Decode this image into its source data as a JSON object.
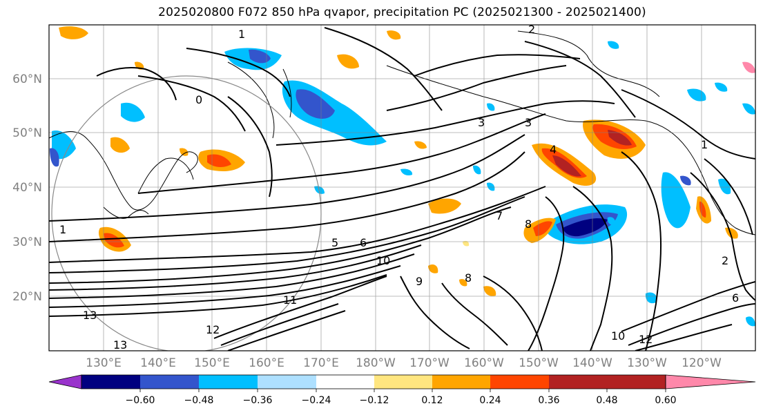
{
  "title": "2025020800 F072 850 hPa qvapor, precipitation PC (2025021300 - 2025021400)",
  "map": {
    "lat_labels": [
      "60°N",
      "50°N",
      "40°N",
      "30°N",
      "20°N"
    ],
    "lon_labels": [
      "130°E",
      "140°E",
      "150°E",
      "160°E",
      "170°E",
      "180°W",
      "170°W",
      "160°W",
      "150°W",
      "140°W",
      "130°W",
      "120°W"
    ],
    "contour_labels": [
      "1",
      "2",
      "3",
      "3",
      "4",
      "5",
      "6",
      "7",
      "8",
      "9",
      "10",
      "10",
      "11",
      "12",
      "12",
      "13",
      "13",
      "1",
      "2",
      "6",
      "8",
      "0",
      "1"
    ]
  },
  "colorbar": {
    "tick_labels": [
      "−0.60",
      "−0.48",
      "−0.36",
      "−0.24",
      "−0.12",
      "0.12",
      "0.24",
      "0.36",
      "0.48",
      "0.60"
    ],
    "colors": [
      "#9933cc",
      "#000080",
      "#3355cc",
      "#00bfff",
      "#aee0ff",
      "#ffffff",
      "#ffe680",
      "#ffa500",
      "#ff4500",
      "#b22222",
      "#ff88aa"
    ]
  }
}
